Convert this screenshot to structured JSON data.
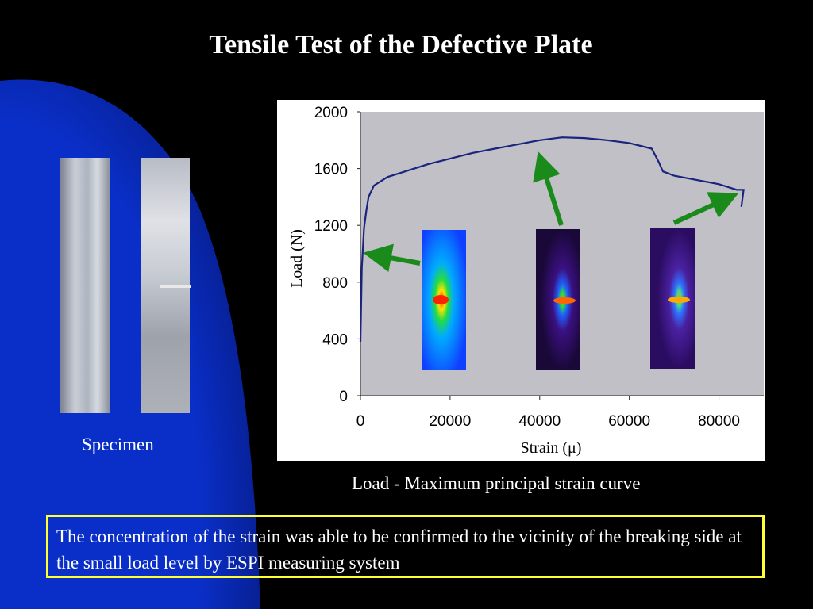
{
  "slide": {
    "title": "Tensile Test of the Defective Plate",
    "specimen_label": "Specimen",
    "caption": "Load - Maximum principal strain curve",
    "note": "The concentration of the strain was able to be confirmed to the vicinity of the breaking side at the small load level by ESPI measuring system"
  },
  "colors": {
    "background": "#000000",
    "arc": "#0a2fc8",
    "curve": "#1a237e",
    "arrow": "#1a8a1a",
    "note_border": "#ffff33"
  },
  "chart_data": {
    "type": "line",
    "title": "",
    "xlabel": "Strain (μ)",
    "ylabel": "Load (N)",
    "xlim": [
      0,
      90000
    ],
    "ylim": [
      0,
      2000
    ],
    "x_ticks": [
      "0",
      "20000",
      "40000",
      "60000",
      "80000"
    ],
    "y_ticks": [
      "0",
      "400",
      "800",
      "1200",
      "1600",
      "2000"
    ],
    "grid": false,
    "series": [
      {
        "x": [
          0,
          300,
          800,
          1300,
          1800,
          3000,
          6000,
          10000,
          15000,
          20000,
          25000,
          30000,
          35000,
          40000,
          45000,
          50000,
          55000,
          60000,
          65000,
          66500,
          67500,
          70000,
          75000,
          80000,
          84000,
          85500,
          85000
        ],
        "y": [
          380,
          900,
          1180,
          1300,
          1400,
          1480,
          1540,
          1580,
          1630,
          1670,
          1710,
          1740,
          1770,
          1800,
          1820,
          1815,
          1800,
          1780,
          1740,
          1650,
          1580,
          1550,
          1520,
          1490,
          1450,
          1450,
          1330
        ]
      }
    ]
  }
}
